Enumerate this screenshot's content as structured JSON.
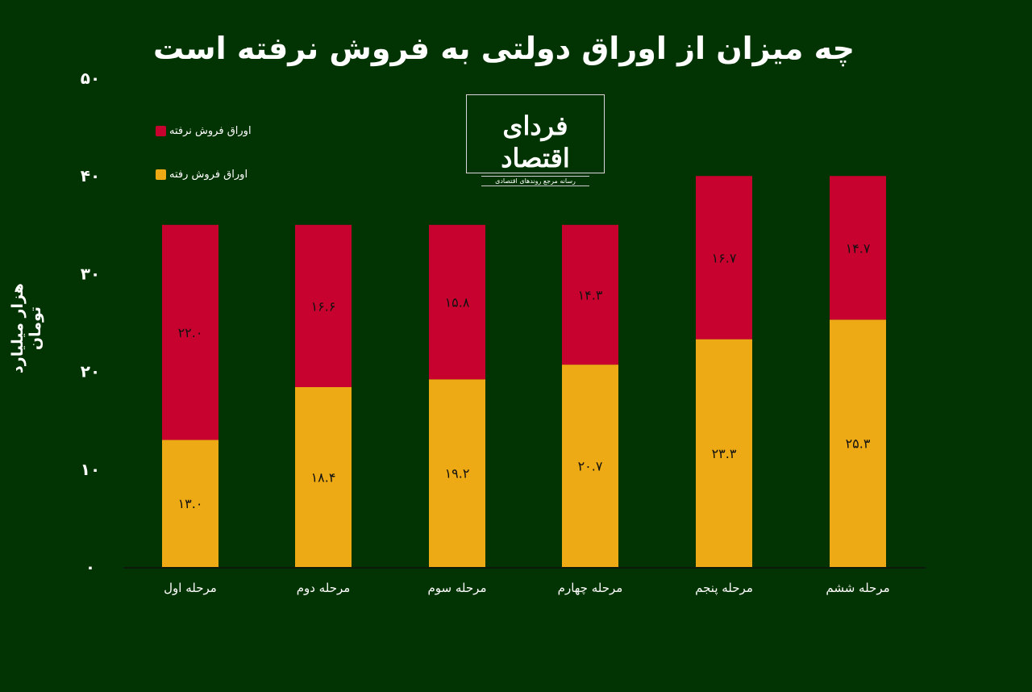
{
  "chart_data": {
    "type": "bar",
    "stacked": true,
    "title": "چه میزان از اوراق دولتی به فروش نرفته است",
    "ylabel": "هزار میلیارد تومان",
    "xlabel": "",
    "ylim": [
      0,
      50
    ],
    "yticks": [
      0,
      10,
      20,
      30,
      40,
      50
    ],
    "ytick_labels": [
      "۰",
      "۱۰",
      "۲۰",
      "۳۰",
      "۴۰",
      "۵۰"
    ],
    "categories": [
      "مرحله اول",
      "مرحله دوم",
      "مرحله سوم",
      "مرحله چهارم",
      "مرحله پنجم",
      "مرحله ششم"
    ],
    "legend_placement": "top-left",
    "series": [
      {
        "name": "اوراق فروش رفته",
        "color": "#eeaa14",
        "values": [
          13.0,
          18.4,
          19.2,
          20.7,
          23.3,
          25.3
        ],
        "labels": [
          "۱۳.۰",
          "۱۸.۴",
          "۱۹.۲",
          "۲۰.۷",
          "۲۳.۳",
          "۲۵.۳"
        ]
      },
      {
        "name": "اوراق فروش نرفته",
        "color": "#c8022f",
        "values": [
          22.0,
          16.6,
          15.8,
          14.3,
          16.7,
          14.7
        ],
        "labels": [
          "۲۲.۰",
          "۱۶.۶",
          "۱۵.۸",
          "۱۴.۳",
          "۱۶.۷",
          "۱۴.۷"
        ]
      }
    ]
  },
  "logo": {
    "name": "فردای اقتصاد",
    "tagline": "رسانه مرجع روندهای اقتصادی"
  }
}
